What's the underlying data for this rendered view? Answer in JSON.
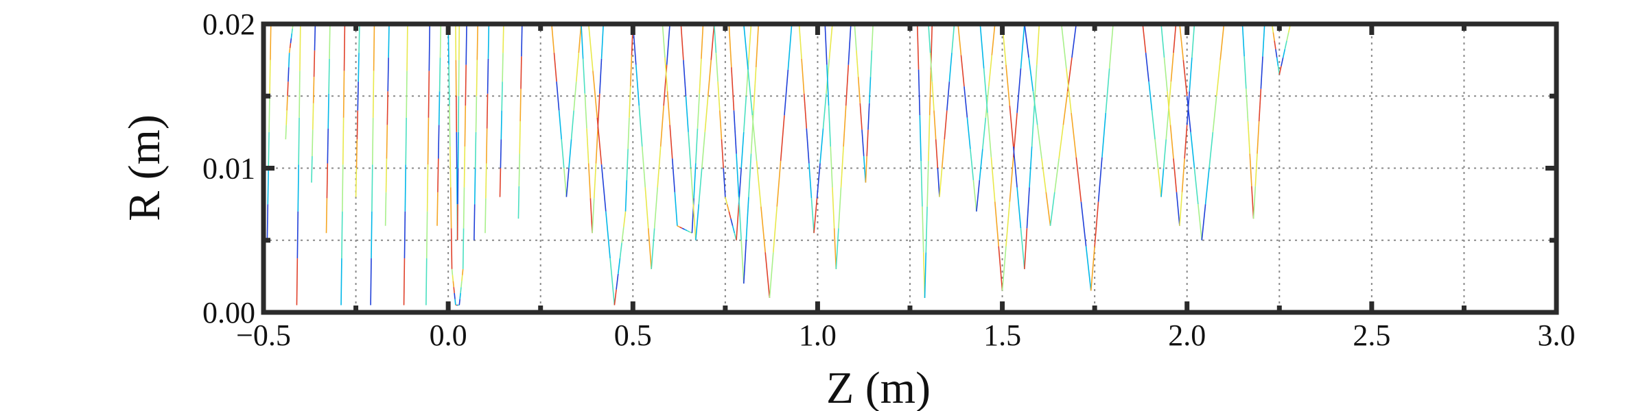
{
  "chart_data": {
    "type": "line",
    "title": "",
    "xlabel": "Z (m)",
    "ylabel": "R (m)",
    "xlim": [
      -0.5,
      3.0
    ],
    "ylim": [
      0.0,
      0.02
    ],
    "xticks": [
      -0.5,
      0.0,
      0.5,
      1.0,
      1.5,
      2.0,
      2.5,
      3.0
    ],
    "xtick_labels": [
      "−0.5",
      "0.0",
      "0.5",
      "1.0",
      "1.5",
      "2.0",
      "2.5",
      "3.0"
    ],
    "yticks": [
      0.0,
      0.01,
      0.02
    ],
    "ytick_labels": [
      "0.00",
      "0.01",
      "0.02"
    ],
    "minor_xticks": [
      -0.25,
      0.25,
      0.75,
      1.25,
      1.75,
      2.25,
      2.75
    ],
    "minor_yticks": [
      0.005,
      0.015
    ],
    "grid": true,
    "grid_style": "dotted",
    "colors": [
      "#1f3fd8",
      "#00b7e8",
      "#49e0c0",
      "#a8f08a",
      "#e8e84a",
      "#f5a623",
      "#e0402a"
    ],
    "series": [
      {
        "values": [
          [
            -0.49,
            0.005
          ],
          [
            -0.48,
            0.02
          ]
        ]
      },
      {
        "values": [
          [
            -0.44,
            0.012
          ],
          [
            -0.43,
            0.018
          ],
          [
            -0.42,
            0.02
          ]
        ]
      },
      {
        "values": [
          [
            -0.41,
            0.0005
          ],
          [
            -0.4,
            0.02
          ]
        ]
      },
      {
        "values": [
          [
            -0.37,
            0.009
          ],
          [
            -0.36,
            0.02
          ]
        ]
      },
      {
        "values": [
          [
            -0.33,
            0.0055
          ],
          [
            -0.32,
            0.02
          ]
        ]
      },
      {
        "values": [
          [
            -0.29,
            0.0005
          ],
          [
            -0.28,
            0.02
          ]
        ]
      },
      {
        "values": [
          [
            -0.25,
            0.008
          ],
          [
            -0.24,
            0.02
          ]
        ]
      },
      {
        "values": [
          [
            -0.21,
            0.0005
          ],
          [
            -0.2,
            0.02
          ]
        ]
      },
      {
        "values": [
          [
            -0.17,
            0.006
          ],
          [
            -0.16,
            0.02
          ]
        ]
      },
      {
        "values": [
          [
            -0.12,
            0.0005
          ],
          [
            -0.11,
            0.02
          ]
        ]
      },
      {
        "values": [
          [
            -0.06,
            0.0005
          ],
          [
            -0.05,
            0.02
          ]
        ]
      },
      {
        "values": [
          [
            -0.03,
            0.006
          ],
          [
            -0.02,
            0.02
          ]
        ]
      },
      {
        "values": [
          [
            0.0,
            0.02
          ],
          [
            0.01,
            0.003
          ],
          [
            0.02,
            0.0005
          ],
          [
            0.03,
            0.0005
          ],
          [
            0.04,
            0.003
          ],
          [
            0.05,
            0.02
          ]
        ]
      },
      {
        "values": [
          [
            0.02,
            0.02
          ],
          [
            0.025,
            0.005
          ],
          [
            0.03,
            0.02
          ]
        ]
      },
      {
        "values": [
          [
            0.07,
            0.005
          ],
          [
            0.08,
            0.02
          ]
        ]
      },
      {
        "values": [
          [
            0.1,
            0.0055
          ],
          [
            0.11,
            0.02
          ]
        ]
      },
      {
        "values": [
          [
            0.14,
            0.008
          ],
          [
            0.15,
            0.02
          ]
        ]
      },
      {
        "values": [
          [
            0.19,
            0.0065
          ],
          [
            0.2,
            0.02
          ]
        ]
      },
      {
        "values": [
          [
            0.28,
            0.02
          ],
          [
            0.32,
            0.008
          ],
          [
            0.36,
            0.02
          ]
        ]
      },
      {
        "values": [
          [
            0.36,
            0.02
          ],
          [
            0.39,
            0.0055
          ],
          [
            0.42,
            0.02
          ]
        ]
      },
      {
        "values": [
          [
            0.38,
            0.02
          ],
          [
            0.45,
            0.0005
          ],
          [
            0.48,
            0.007
          ],
          [
            0.5,
            0.02
          ]
        ]
      },
      {
        "values": [
          [
            0.5,
            0.02
          ],
          [
            0.55,
            0.003
          ],
          [
            0.6,
            0.02
          ]
        ]
      },
      {
        "values": [
          [
            0.58,
            0.02
          ],
          [
            0.62,
            0.006
          ],
          [
            0.66,
            0.0055
          ],
          [
            0.69,
            0.02
          ]
        ]
      },
      {
        "values": [
          [
            0.63,
            0.02
          ],
          [
            0.67,
            0.005
          ],
          [
            0.72,
            0.02
          ]
        ]
      },
      {
        "values": [
          [
            0.72,
            0.02
          ],
          [
            0.75,
            0.008
          ],
          [
            0.78,
            0.005
          ],
          [
            0.82,
            0.02
          ]
        ]
      },
      {
        "values": [
          [
            0.76,
            0.02
          ],
          [
            0.8,
            0.002
          ],
          [
            0.84,
            0.02
          ]
        ]
      },
      {
        "values": [
          [
            0.8,
            0.02
          ],
          [
            0.87,
            0.001
          ],
          [
            0.93,
            0.02
          ]
        ]
      },
      {
        "values": [
          [
            0.95,
            0.02
          ],
          [
            0.99,
            0.0055
          ],
          [
            1.04,
            0.02
          ]
        ]
      },
      {
        "values": [
          [
            1.02,
            0.02
          ],
          [
            1.05,
            0.003
          ],
          [
            1.09,
            0.02
          ]
        ]
      },
      {
        "values": [
          [
            1.1,
            0.02
          ],
          [
            1.13,
            0.009
          ],
          [
            1.15,
            0.02
          ]
        ]
      },
      {
        "values": [
          [
            1.27,
            0.02
          ],
          [
            1.29,
            0.001
          ],
          [
            1.31,
            0.02
          ]
        ]
      },
      {
        "values": [
          [
            1.3,
            0.02
          ],
          [
            1.33,
            0.008
          ],
          [
            1.37,
            0.02
          ]
        ]
      },
      {
        "values": [
          [
            1.38,
            0.02
          ],
          [
            1.43,
            0.007
          ],
          [
            1.48,
            0.02
          ]
        ]
      },
      {
        "values": [
          [
            1.44,
            0.02
          ],
          [
            1.5,
            0.0015
          ],
          [
            1.56,
            0.02
          ]
        ]
      },
      {
        "values": [
          [
            1.5,
            0.02
          ],
          [
            1.56,
            0.003
          ],
          [
            1.6,
            0.02
          ]
        ]
      },
      {
        "values": [
          [
            1.56,
            0.02
          ],
          [
            1.63,
            0.006
          ],
          [
            1.7,
            0.02
          ]
        ]
      },
      {
        "values": [
          [
            1.66,
            0.02
          ],
          [
            1.74,
            0.0015
          ],
          [
            1.8,
            0.02
          ]
        ]
      },
      {
        "values": [
          [
            1.88,
            0.02
          ],
          [
            1.93,
            0.008
          ],
          [
            1.97,
            0.02
          ]
        ]
      },
      {
        "values": [
          [
            1.93,
            0.02
          ],
          [
            1.98,
            0.006
          ],
          [
            2.02,
            0.02
          ]
        ]
      },
      {
        "values": [
          [
            1.98,
            0.02
          ],
          [
            2.04,
            0.005
          ],
          [
            2.1,
            0.02
          ]
        ]
      },
      {
        "values": [
          [
            2.15,
            0.02
          ],
          [
            2.18,
            0.0065
          ],
          [
            2.21,
            0.02
          ]
        ]
      },
      {
        "values": [
          [
            2.23,
            0.02
          ],
          [
            2.25,
            0.0165
          ],
          [
            2.28,
            0.02
          ]
        ]
      }
    ]
  }
}
